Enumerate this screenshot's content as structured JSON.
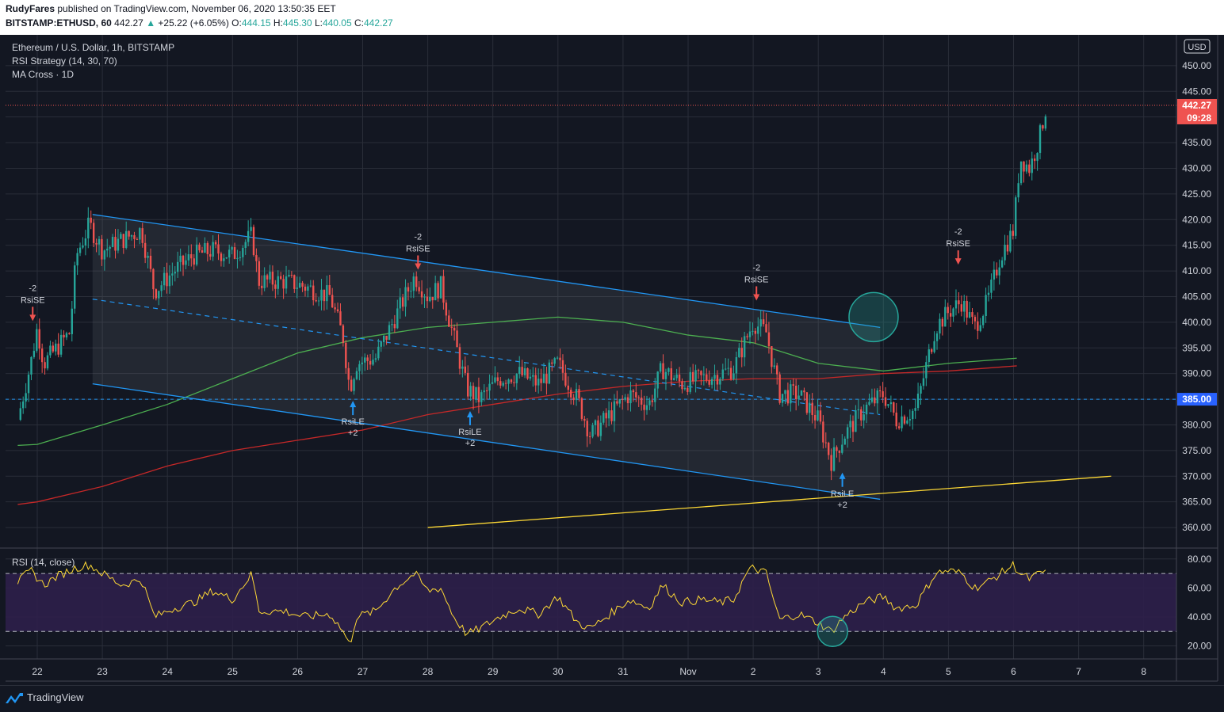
{
  "header": {
    "author": "RudyFares",
    "published": "published on TradingView.com, November 06, 2020 13:50:35 EET",
    "symbol": "BITSTAMP:ETHUSD, 60",
    "last": "442.27",
    "change_arrow": "▲",
    "change": "+25.22 (+6.05%)",
    "o_label": "O:",
    "o_value": "444.15",
    "h_label": "H:",
    "h_value": "445.30",
    "l_label": "L:",
    "l_value": "440.05",
    "c_label": "C:",
    "c_value": "442.27"
  },
  "legend": {
    "title": "Ethereum / U.S. Dollar, 1h, BITSTAMP",
    "strategy": "RSI Strategy (14, 30, 70)",
    "ma": "MA Cross · 1D",
    "rsi": "RSI (14, close)"
  },
  "footer": {
    "brand": "TradingView"
  },
  "colors": {
    "background": "#131722",
    "grid": "#2a2e39",
    "up": "#26a69a",
    "down": "#ef5350",
    "channel": "#2196f3",
    "ma_fast": "#4caf50",
    "ma_slow": "#c62828",
    "trendline": "#fdd835",
    "rsi_line": "#fdd835",
    "rsi_band": "#2e1f4a",
    "highlight": "#26a69a"
  },
  "chart_data": [
    {
      "type": "candlestick",
      "title": "Ethereum / U.S. Dollar, 1h, BITSTAMP",
      "currency_label": "USD",
      "x_tick_labels": [
        "22",
        "23",
        "24",
        "25",
        "26",
        "27",
        "28",
        "29",
        "30",
        "31",
        "Nov",
        "2",
        "3",
        "4",
        "5",
        "6",
        "7",
        "8"
      ],
      "y_ticks": [
        360,
        365,
        370,
        375,
        380,
        385,
        390,
        395,
        400,
        405,
        410,
        415,
        420,
        425,
        430,
        435,
        440,
        445,
        450
      ],
      "y_tick_labels": [
        "360.00",
        "365.00",
        "370.00",
        "375.00",
        "380.00",
        "385.00",
        "390.00",
        "395.00",
        "400.00",
        "405.00",
        "410.00",
        "415.00",
        "420.00",
        "425.00",
        "430.00",
        "435.00",
        "440.00",
        "445.00",
        "450.00"
      ],
      "ylim": [
        356,
        456
      ],
      "last_price": {
        "value": 442.27,
        "label": "442.27",
        "countdown": "09:28"
      },
      "horizontal_level": {
        "value": 385,
        "label": "385.00"
      },
      "close_path": [
        {
          "d": 21.7,
          "v": 381
        },
        {
          "d": 21.9,
          "v": 392
        },
        {
          "d": 22.0,
          "v": 399
        },
        {
          "d": 22.1,
          "v": 392
        },
        {
          "d": 22.3,
          "v": 395
        },
        {
          "d": 22.5,
          "v": 398
        },
        {
          "d": 22.6,
          "v": 413
        },
        {
          "d": 22.8,
          "v": 419
        },
        {
          "d": 23.0,
          "v": 414
        },
        {
          "d": 23.3,
          "v": 416
        },
        {
          "d": 23.6,
          "v": 418
        },
        {
          "d": 23.8,
          "v": 406
        },
        {
          "d": 24.1,
          "v": 410
        },
        {
          "d": 24.4,
          "v": 413
        },
        {
          "d": 24.7,
          "v": 414
        },
        {
          "d": 25.0,
          "v": 413
        },
        {
          "d": 25.3,
          "v": 417
        },
        {
          "d": 25.4,
          "v": 408
        },
        {
          "d": 25.8,
          "v": 408
        },
        {
          "d": 26.1,
          "v": 407
        },
        {
          "d": 26.5,
          "v": 405
        },
        {
          "d": 26.7,
          "v": 397
        },
        {
          "d": 26.8,
          "v": 387
        },
        {
          "d": 26.9,
          "v": 392
        },
        {
          "d": 27.2,
          "v": 393
        },
        {
          "d": 27.5,
          "v": 401
        },
        {
          "d": 27.8,
          "v": 409
        },
        {
          "d": 28.0,
          "v": 405
        },
        {
          "d": 28.2,
          "v": 407
        },
        {
          "d": 28.4,
          "v": 397
        },
        {
          "d": 28.6,
          "v": 387
        },
        {
          "d": 28.8,
          "v": 385
        },
        {
          "d": 29.1,
          "v": 389
        },
        {
          "d": 29.4,
          "v": 390
        },
        {
          "d": 29.7,
          "v": 388
        },
        {
          "d": 30.0,
          "v": 392
        },
        {
          "d": 30.3,
          "v": 385
        },
        {
          "d": 30.5,
          "v": 378
        },
        {
          "d": 30.8,
          "v": 382
        },
        {
          "d": 31.1,
          "v": 386
        },
        {
          "d": 31.4,
          "v": 384
        },
        {
          "d": 31.6,
          "v": 391
        },
        {
          "d": 31.9,
          "v": 388
        },
        {
          "d": 32.2,
          "v": 389
        },
        {
          "d": 32.5,
          "v": 390
        },
        {
          "d": 32.7,
          "v": 391
        },
        {
          "d": 32.9,
          "v": 397
        },
        {
          "d": 33.0,
          "v": 400
        },
        {
          "d": 33.2,
          "v": 398
        },
        {
          "d": 33.4,
          "v": 386
        },
        {
          "d": 33.7,
          "v": 386
        },
        {
          "d": 34.0,
          "v": 381
        },
        {
          "d": 34.2,
          "v": 373
        },
        {
          "d": 34.4,
          "v": 378
        },
        {
          "d": 34.7,
          "v": 383
        },
        {
          "d": 35.0,
          "v": 386
        },
        {
          "d": 35.2,
          "v": 381
        },
        {
          "d": 35.5,
          "v": 383
        },
        {
          "d": 35.8,
          "v": 399
        },
        {
          "d": 36.0,
          "v": 402
        },
        {
          "d": 36.2,
          "v": 404
        },
        {
          "d": 36.4,
          "v": 399
        },
        {
          "d": 36.6,
          "v": 404
        },
        {
          "d": 36.8,
          "v": 413
        },
        {
          "d": 37.0,
          "v": 418
        },
        {
          "d": 37.1,
          "v": 432
        },
        {
          "d": 37.25,
          "v": 430
        },
        {
          "d": 37.4,
          "v": 436
        },
        {
          "d": 37.5,
          "v": 442
        }
      ]
    },
    {
      "type": "line",
      "title": "RSI (14, close)",
      "y_ticks": [
        20,
        40,
        60,
        80
      ],
      "y_tick_labels": [
        "20.00",
        "40.00",
        "60.00",
        "80.00"
      ],
      "ylim": [
        11,
        87
      ],
      "band": [
        30,
        70
      ],
      "path": [
        {
          "d": 21.7,
          "v": 64
        },
        {
          "d": 21.9,
          "v": 72
        },
        {
          "d": 22.1,
          "v": 62
        },
        {
          "d": 22.3,
          "v": 68
        },
        {
          "d": 22.6,
          "v": 74
        },
        {
          "d": 22.8,
          "v": 76
        },
        {
          "d": 23.0,
          "v": 70
        },
        {
          "d": 23.3,
          "v": 62
        },
        {
          "d": 23.6,
          "v": 66
        },
        {
          "d": 23.8,
          "v": 40
        },
        {
          "d": 24.1,
          "v": 46
        },
        {
          "d": 24.4,
          "v": 50
        },
        {
          "d": 24.7,
          "v": 58
        },
        {
          "d": 25.0,
          "v": 52
        },
        {
          "d": 25.3,
          "v": 70
        },
        {
          "d": 25.4,
          "v": 44
        },
        {
          "d": 25.8,
          "v": 44
        },
        {
          "d": 26.1,
          "v": 40
        },
        {
          "d": 26.5,
          "v": 42
        },
        {
          "d": 26.7,
          "v": 30
        },
        {
          "d": 26.8,
          "v": 20
        },
        {
          "d": 26.9,
          "v": 40
        },
        {
          "d": 27.2,
          "v": 44
        },
        {
          "d": 27.5,
          "v": 60
        },
        {
          "d": 27.8,
          "v": 70
        },
        {
          "d": 28.0,
          "v": 58
        },
        {
          "d": 28.2,
          "v": 60
        },
        {
          "d": 28.4,
          "v": 40
        },
        {
          "d": 28.6,
          "v": 28
        },
        {
          "d": 28.8,
          "v": 32
        },
        {
          "d": 29.1,
          "v": 40
        },
        {
          "d": 29.4,
          "v": 46
        },
        {
          "d": 29.7,
          "v": 42
        },
        {
          "d": 30.0,
          "v": 54
        },
        {
          "d": 30.3,
          "v": 36
        },
        {
          "d": 30.5,
          "v": 32
        },
        {
          "d": 30.8,
          "v": 42
        },
        {
          "d": 31.1,
          "v": 52
        },
        {
          "d": 31.4,
          "v": 46
        },
        {
          "d": 31.6,
          "v": 62
        },
        {
          "d": 31.9,
          "v": 50
        },
        {
          "d": 32.2,
          "v": 52
        },
        {
          "d": 32.5,
          "v": 50
        },
        {
          "d": 32.7,
          "v": 52
        },
        {
          "d": 32.9,
          "v": 70
        },
        {
          "d": 33.0,
          "v": 74
        },
        {
          "d": 33.2,
          "v": 70
        },
        {
          "d": 33.4,
          "v": 38
        },
        {
          "d": 33.7,
          "v": 42
        },
        {
          "d": 34.0,
          "v": 36
        },
        {
          "d": 34.2,
          "v": 30
        },
        {
          "d": 34.4,
          "v": 40
        },
        {
          "d": 34.7,
          "v": 50
        },
        {
          "d": 35.0,
          "v": 54
        },
        {
          "d": 35.2,
          "v": 46
        },
        {
          "d": 35.5,
          "v": 48
        },
        {
          "d": 35.8,
          "v": 70
        },
        {
          "d": 36.0,
          "v": 72
        },
        {
          "d": 36.2,
          "v": 70
        },
        {
          "d": 36.4,
          "v": 60
        },
        {
          "d": 36.6,
          "v": 64
        },
        {
          "d": 36.8,
          "v": 70
        },
        {
          "d": 37.0,
          "v": 76
        },
        {
          "d": 37.1,
          "v": 70
        },
        {
          "d": 37.25,
          "v": 66
        },
        {
          "d": 37.4,
          "v": 70
        },
        {
          "d": 37.5,
          "v": 72
        }
      ]
    }
  ],
  "drawings": {
    "channel_upper": [
      {
        "d": 22.85,
        "v": 421
      },
      {
        "d": 34.95,
        "v": 399
      }
    ],
    "channel_mid": [
      {
        "d": 22.85,
        "v": 404.5
      },
      {
        "d": 34.95,
        "v": 382
      }
    ],
    "channel_lower": [
      {
        "d": 22.85,
        "v": 388
      },
      {
        "d": 34.95,
        "v": 365.5
      }
    ],
    "trendline": [
      {
        "d": 28.0,
        "v": 360
      },
      {
        "d": 38.5,
        "v": 370
      }
    ],
    "ma_fast": [
      {
        "d": 21.7,
        "v": 376
      },
      {
        "d": 22.0,
        "v": 376.2
      },
      {
        "d": 23.0,
        "v": 380
      },
      {
        "d": 24.0,
        "v": 384
      },
      {
        "d": 25.0,
        "v": 389
      },
      {
        "d": 26.0,
        "v": 394
      },
      {
        "d": 27.0,
        "v": 397
      },
      {
        "d": 28.0,
        "v": 399
      },
      {
        "d": 29.0,
        "v": 400
      },
      {
        "d": 29.5,
        "v": 400.5
      },
      {
        "d": 30.0,
        "v": 401
      },
      {
        "d": 31.0,
        "v": 400
      },
      {
        "d": 32.0,
        "v": 397.5
      },
      {
        "d": 33.0,
        "v": 396
      },
      {
        "d": 34.0,
        "v": 392
      },
      {
        "d": 35.0,
        "v": 390.5
      },
      {
        "d": 36.0,
        "v": 392
      },
      {
        "d": 37.05,
        "v": 393
      }
    ],
    "ma_slow": [
      {
        "d": 21.7,
        "v": 364.5
      },
      {
        "d": 22.0,
        "v": 365
      },
      {
        "d": 23.0,
        "v": 368
      },
      {
        "d": 24.0,
        "v": 372
      },
      {
        "d": 25.0,
        "v": 375
      },
      {
        "d": 26.0,
        "v": 377
      },
      {
        "d": 27.0,
        "v": 379
      },
      {
        "d": 28.0,
        "v": 382
      },
      {
        "d": 29.0,
        "v": 384
      },
      {
        "d": 30.0,
        "v": 386
      },
      {
        "d": 31.0,
        "v": 387.5
      },
      {
        "d": 32.0,
        "v": 388.5
      },
      {
        "d": 33.0,
        "v": 389
      },
      {
        "d": 34.0,
        "v": 389
      },
      {
        "d": 35.0,
        "v": 390
      },
      {
        "d": 36.0,
        "v": 390.5
      },
      {
        "d": 37.05,
        "v": 391.5
      }
    ]
  },
  "signals": [
    {
      "kind": "short",
      "d": 21.93,
      "v": 399,
      "top": "-2",
      "bottom": "RsiSE"
    },
    {
      "kind": "long",
      "d": 26.85,
      "v": 385,
      "top": "RsiLE",
      "bottom": "+2"
    },
    {
      "kind": "short",
      "d": 27.85,
      "v": 409,
      "top": "-2",
      "bottom": "RsiSE"
    },
    {
      "kind": "long",
      "d": 28.65,
      "v": 383,
      "top": "RsiLE",
      "bottom": "+2"
    },
    {
      "kind": "short",
      "d": 33.05,
      "v": 403,
      "top": "-2",
      "bottom": "RsiSE"
    },
    {
      "kind": "long",
      "d": 34.37,
      "v": 371,
      "top": "RsiLE",
      "bottom": "+2"
    },
    {
      "kind": "short",
      "d": 36.15,
      "v": 410,
      "top": "-2",
      "bottom": "RsiSE"
    }
  ],
  "highlights": [
    {
      "pane": 0,
      "d": 34.85,
      "v": 401
    },
    {
      "pane": 1,
      "d": 34.22,
      "v": 30
    }
  ]
}
